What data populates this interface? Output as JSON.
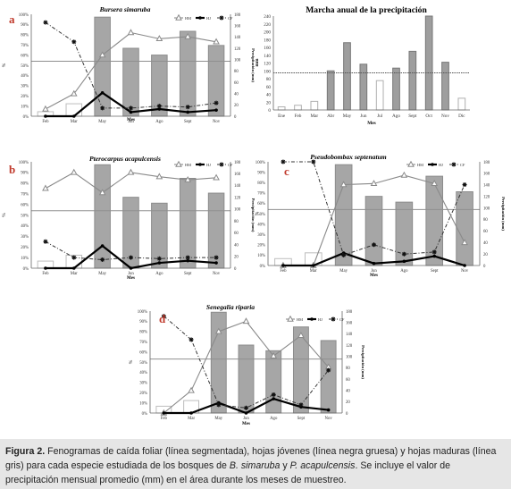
{
  "chart_data": [
    {
      "type": "bar+line",
      "panel_letter": "a",
      "title": "Bursera simaruba",
      "xlabel": "Mes",
      "ylabel_left": "%",
      "ylabel_right": "Precipitación (mm)",
      "categories": [
        "Feb",
        "Mar",
        "May",
        "Jun",
        "Ago",
        "Sept",
        "Nov"
      ],
      "left_ticks": [
        "0%",
        "10%",
        "20%",
        "30%",
        "40%",
        "50%",
        "60%",
        "70%",
        "80%",
        "90%",
        "100%"
      ],
      "right_ticks": [
        "0",
        "20",
        "40",
        "60",
        "80",
        "100",
        "120",
        "140",
        "160",
        "180"
      ],
      "yleft_lim": [
        0,
        100
      ],
      "yright_lim": [
        0,
        180
      ],
      "bar_values": [
        8,
        22,
        175,
        120,
        108,
        150,
        125
      ],
      "reference_line": 54,
      "legend": [
        "HM",
        "HJ",
        "CF"
      ],
      "series": [
        {
          "name": "HM",
          "values": [
            7,
            22,
            60,
            82,
            76,
            78,
            73
          ]
        },
        {
          "name": "HJ",
          "values": [
            0,
            0,
            23,
            4,
            7,
            4,
            6
          ]
        },
        {
          "name": "CF",
          "values": [
            92,
            73,
            8,
            8,
            10,
            9,
            13
          ]
        }
      ]
    },
    {
      "type": "bar",
      "title": "Marcha anual de la precipitación",
      "xlabel": "Mes",
      "ylabel": "mm",
      "categories": [
        "Ene",
        "Feb",
        "Mar",
        "Abr",
        "May",
        "Jun",
        "Jul",
        "Ago",
        "Sept",
        "Oct",
        "Nov",
        "Dic"
      ],
      "ticks": [
        "0",
        "20",
        "40",
        "60",
        "80",
        "100",
        "120",
        "140",
        "160",
        "180",
        "200",
        "220",
        "240"
      ],
      "ylim": [
        0,
        240
      ],
      "values": [
        8,
        12,
        22,
        100,
        172,
        117,
        75,
        107,
        150,
        240,
        122,
        30
      ],
      "highlighted": [
        false,
        false,
        false,
        true,
        true,
        true,
        false,
        true,
        true,
        true,
        true,
        false
      ],
      "reference_line": 95
    },
    {
      "type": "bar+line",
      "panel_letter": "b",
      "title": "Pterocarpus acapulcensis",
      "xlabel": "Mes",
      "ylabel_left": "%",
      "ylabel_right": "Precipitación (mm)",
      "categories": [
        "Feb",
        "Mar",
        "May",
        "Jun",
        "Ago",
        "Sept",
        "Nov"
      ],
      "left_ticks": [
        "0%",
        "10%",
        "20%",
        "30%",
        "40%",
        "50%",
        "60%",
        "70%",
        "80%",
        "90%",
        "100%"
      ],
      "right_ticks": [
        "0",
        "20",
        "40",
        "60",
        "80",
        "100",
        "120",
        "140",
        "160",
        "180"
      ],
      "yleft_lim": [
        0,
        100
      ],
      "yright_lim": [
        0,
        180
      ],
      "bar_values": [
        12,
        22,
        175,
        120,
        110,
        152,
        127
      ],
      "reference_line": 54,
      "legend": [
        "HM",
        "HJ",
        "CF"
      ],
      "series": [
        {
          "name": "HM",
          "values": [
            75,
            90,
            71,
            90,
            86,
            83,
            85
          ]
        },
        {
          "name": "HJ",
          "values": [
            0,
            0,
            21,
            0,
            5,
            7,
            5
          ]
        },
        {
          "name": "CF",
          "values": [
            25,
            10,
            8,
            10,
            9,
            10,
            10
          ]
        }
      ]
    },
    {
      "type": "bar+line",
      "panel_letter": "c",
      "title": "Pseudobombax septenatum",
      "xlabel": "Mes",
      "ylabel_left": "%",
      "ylabel_right": "Precipitación (mm)",
      "categories": [
        "Feb",
        "Mar",
        "May",
        "Jun",
        "Ago",
        "Sept",
        "Nov"
      ],
      "left_ticks": [
        "0%",
        "10%",
        "20%",
        "30%",
        "40%",
        "50%",
        "60%",
        "70%",
        "80%",
        "90%",
        "100%"
      ],
      "right_ticks": [
        "0",
        "20",
        "40",
        "60",
        "80",
        "100",
        "120",
        "140",
        "160",
        "180"
      ],
      "yleft_lim": [
        0,
        100
      ],
      "yright_lim": [
        0,
        180
      ],
      "bar_values": [
        12,
        22,
        175,
        120,
        110,
        155,
        128
      ],
      "reference_line": 54,
      "legend": [
        "HM",
        "HJ",
        "CF"
      ],
      "series": [
        {
          "name": "HM",
          "values": [
            0,
            0,
            78,
            79,
            87,
            79,
            22
          ]
        },
        {
          "name": "HJ",
          "values": [
            0,
            0,
            12,
            2,
            4,
            9,
            0
          ]
        },
        {
          "name": "CF",
          "values": [
            100,
            100,
            10,
            20,
            11,
            13,
            78
          ]
        }
      ]
    },
    {
      "type": "bar+line",
      "panel_letter": "d",
      "title": "Senegalia riparia",
      "xlabel": "Mes",
      "ylabel_left": "%",
      "ylabel_right": "Precipitación (mm)",
      "categories": [
        "Feb",
        "Mar",
        "May",
        "Jun",
        "Ago",
        "Sept",
        "Nov"
      ],
      "left_ticks": [
        "0%",
        "10%",
        "20%",
        "30%",
        "40%",
        "50%",
        "60%",
        "70%",
        "80%",
        "90%",
        "100%"
      ],
      "right_ticks": [
        "0",
        "20",
        "40",
        "60",
        "80",
        "100",
        "120",
        "140",
        "160",
        "180"
      ],
      "yleft_lim": [
        0,
        100
      ],
      "yright_lim": [
        0,
        180
      ],
      "bar_values": [
        12,
        22,
        178,
        120,
        110,
        152,
        128
      ],
      "reference_line": 53,
      "legend": [
        "HM",
        "HJ",
        "CF"
      ],
      "series": [
        {
          "name": "HM",
          "values": [
            0,
            22,
            80,
            90,
            56,
            76,
            45
          ]
        },
        {
          "name": "HJ",
          "values": [
            0,
            0,
            10,
            0,
            14,
            6,
            3
          ]
        },
        {
          "name": "CF",
          "values": [
            95,
            72,
            8,
            5,
            18,
            8,
            42
          ]
        }
      ]
    }
  ],
  "caption": {
    "label": "Figura 2.",
    "text1": " Fenogramas de caída foliar (línea segmentada), hojas jóvenes (línea negra gruesa) y hojas maduras (línea gris) para cada especie estudiada de los bosques de ",
    "species1": "B. simaruba",
    "text2": " y ",
    "species2": "P. acapulcensis",
    "text3": ". Se incluye el valor de precipitación mensual promedio (mm) en el área durante los meses de muestreo."
  }
}
